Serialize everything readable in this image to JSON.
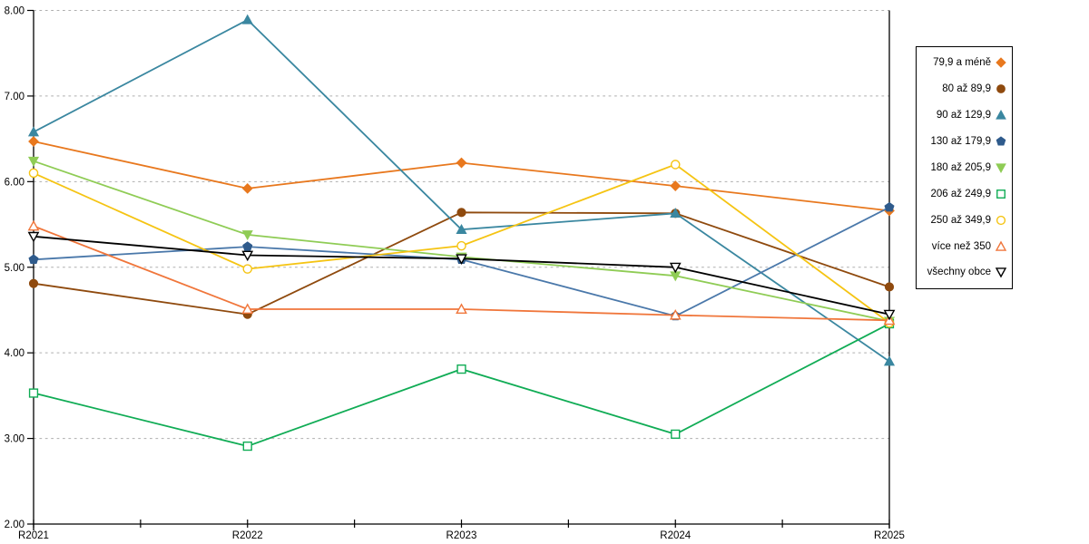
{
  "chart_data": {
    "type": "line",
    "title": "",
    "xlabel": "",
    "ylabel": "",
    "x_categories": [
      "R2021",
      "R2022",
      "R2023",
      "R2024",
      "R2025"
    ],
    "ylim": [
      2.0,
      8.0
    ],
    "y_ticks": [
      8,
      7,
      6,
      5,
      4,
      3,
      2
    ],
    "y_tick_labels": [
      "8.00",
      "7.00",
      "6.00",
      "5.00",
      "4.00",
      "3.00",
      "2.00"
    ],
    "grid": "horizontal dashed gridlines at each 1.00 step",
    "legend_position": "right",
    "axis_color": "#000000",
    "gridline_color": "#AFAFAF",
    "series": [
      {
        "name": "79,9 a méně",
        "marker": "diamond",
        "marker_fill": "solid",
        "color": "#E8781E",
        "values": [
          6.47,
          5.92,
          6.22,
          5.95,
          5.66
        ]
      },
      {
        "name": "80 až 89,9",
        "marker": "circle",
        "marker_fill": "solid",
        "color": "#8F4A0E",
        "values": [
          4.81,
          4.45,
          5.64,
          5.63,
          4.77
        ]
      },
      {
        "name": "90 až 129,9",
        "marker": "triangle-up",
        "marker_fill": "solid",
        "color": "#3A87A0",
        "values": [
          6.58,
          7.89,
          5.44,
          5.63,
          3.9
        ]
      },
      {
        "name": "130 až 179,9",
        "marker": "pentagon",
        "marker_fill": "solid",
        "color": "#2F5B8C",
        "line_color": "#4A78AA",
        "values": [
          5.09,
          5.24,
          5.09,
          4.43,
          5.7
        ]
      },
      {
        "name": "180 až 205,9",
        "marker": "triangle-down",
        "marker_fill": "solid",
        "color": "#8FCC55",
        "values": [
          6.24,
          5.38,
          5.12,
          4.9,
          4.37
        ]
      },
      {
        "name": "206 až 249,9",
        "marker": "square",
        "marker_fill": "hollow",
        "color": "#10AC55",
        "values": [
          3.53,
          2.91,
          3.81,
          3.05,
          4.34
        ]
      },
      {
        "name": "250 až 349,9",
        "marker": "circle",
        "marker_fill": "hollow",
        "color": "#F5C413",
        "values": [
          6.1,
          4.98,
          5.25,
          6.2,
          4.35
        ]
      },
      {
        "name": "více než 350",
        "marker": "triangle-up",
        "marker_fill": "hollow",
        "color": "#F0763B",
        "values": [
          5.48,
          4.51,
          4.51,
          4.44,
          4.38
        ]
      },
      {
        "name": "všechny obce",
        "marker": "triangle-down",
        "marker_fill": "hollow",
        "color": "#000000",
        "values": [
          5.36,
          5.14,
          5.1,
          5.0,
          4.45
        ]
      }
    ]
  }
}
